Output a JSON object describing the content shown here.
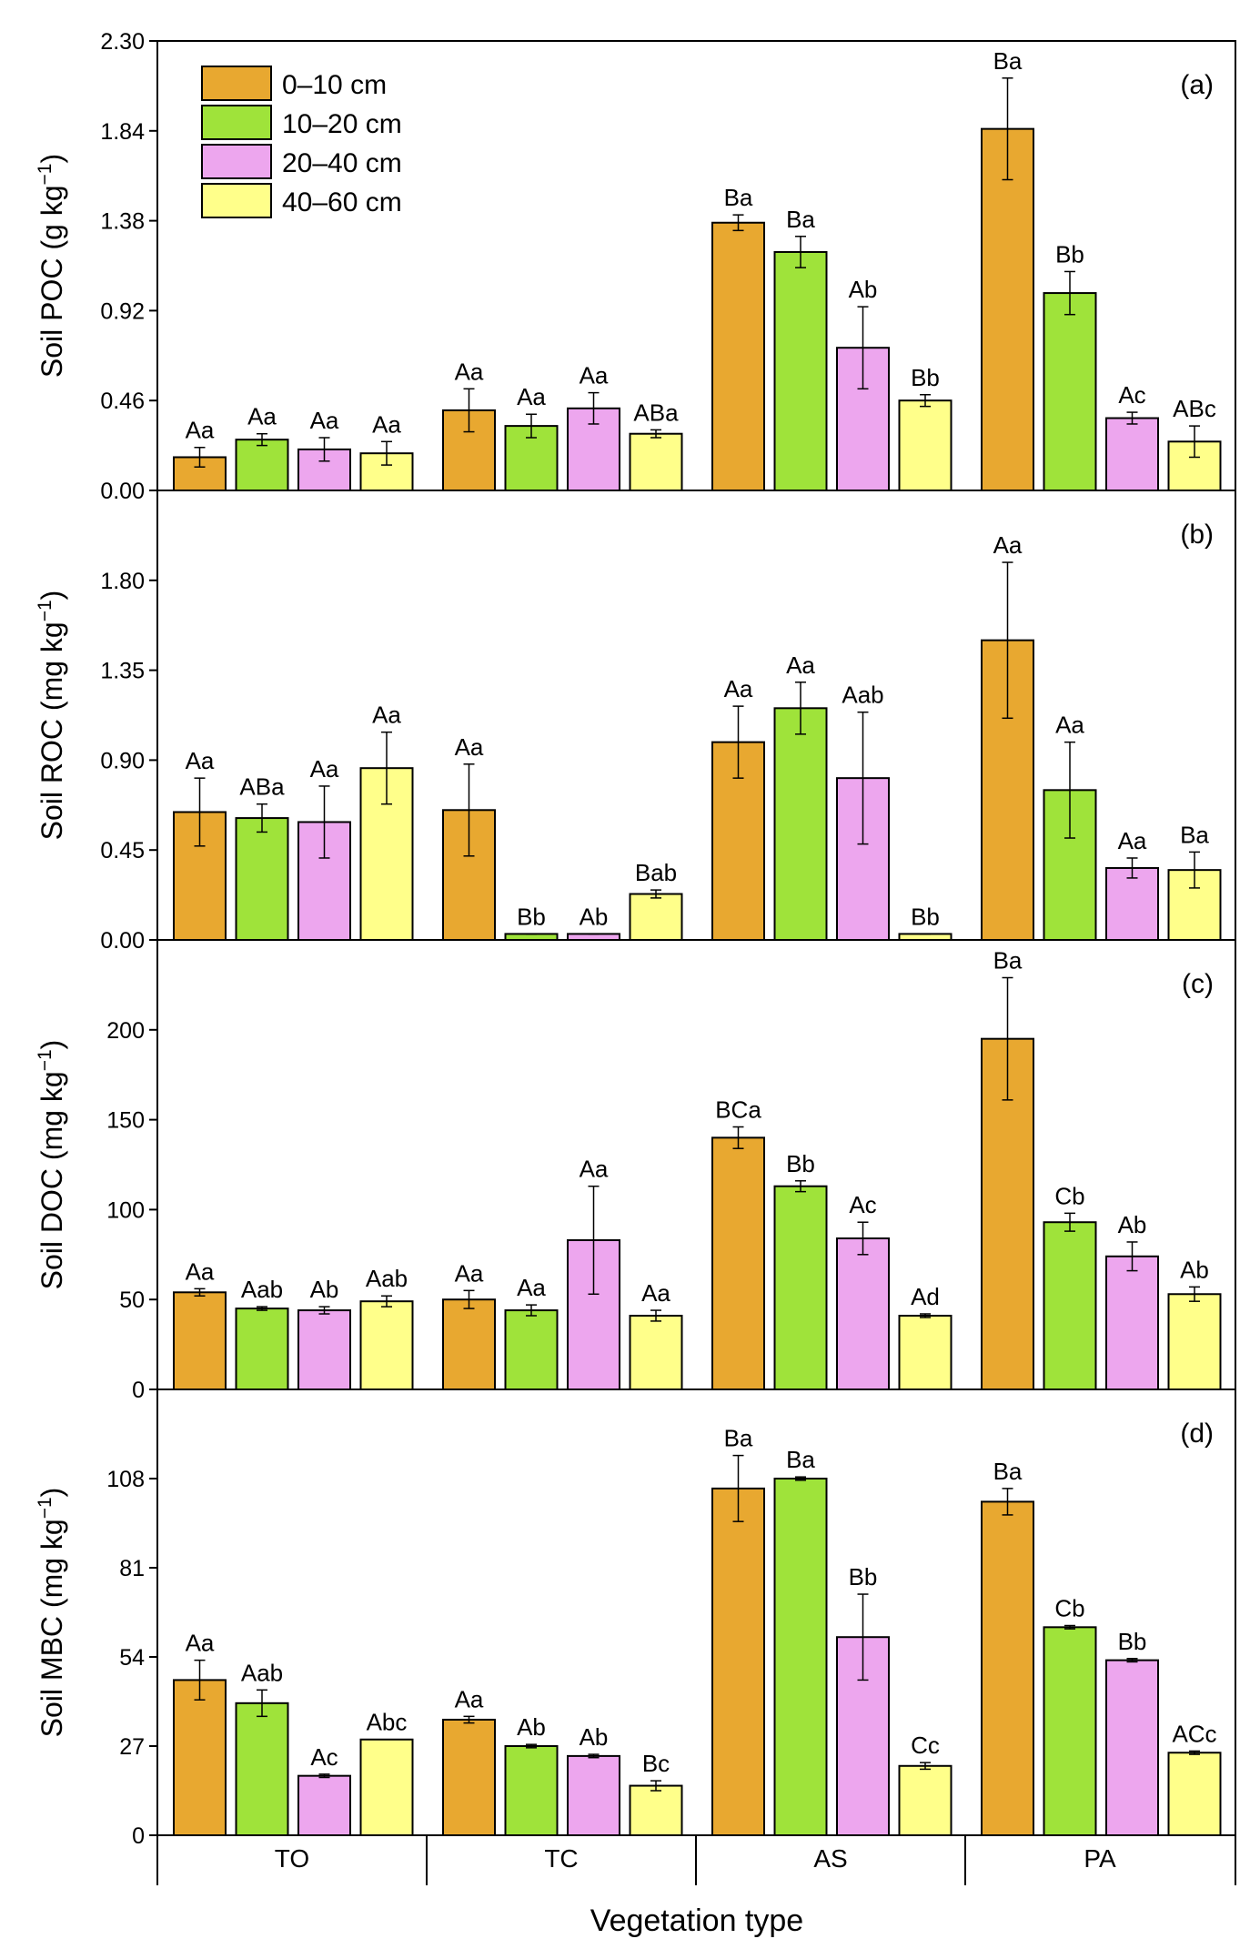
{
  "chart_data": [
    {
      "type": "bar",
      "panel_tag": "(a)",
      "ylabel": "Soil POC (g kg",
      "ylabel_sup": "−1",
      "ylabel_tail": ")",
      "ylim": [
        0,
        2.3
      ],
      "yticks": [
        "0.00",
        "0.46",
        "0.92",
        "1.38",
        "1.84",
        "2.30"
      ],
      "categories": [
        "TO",
        "TC",
        "AS",
        "PA"
      ],
      "series": [
        {
          "name": "0–10 cm",
          "values": [
            0.17,
            0.41,
            1.37,
            1.85
          ],
          "errors": [
            0.05,
            0.11,
            0.04,
            0.26
          ],
          "labels": [
            "Aa",
            "Aa",
            "Ba",
            "Ba"
          ]
        },
        {
          "name": "10–20 cm",
          "values": [
            0.26,
            0.33,
            1.22,
            1.01
          ],
          "errors": [
            0.03,
            0.06,
            0.08,
            0.11
          ],
          "labels": [
            "Aa",
            "Aa",
            "Ba",
            "Bb"
          ]
        },
        {
          "name": "20–40 cm",
          "values": [
            0.21,
            0.42,
            0.73,
            0.37
          ],
          "errors": [
            0.06,
            0.08,
            0.21,
            0.03
          ],
          "labels": [
            "Aa",
            "Aa",
            "Ab",
            "Ac"
          ]
        },
        {
          "name": "40–60 cm",
          "values": [
            0.19,
            0.29,
            0.46,
            0.25
          ],
          "errors": [
            0.06,
            0.02,
            0.03,
            0.08
          ],
          "labels": [
            "Aa",
            "ABa",
            "Bb",
            "ABc"
          ]
        }
      ]
    },
    {
      "type": "bar",
      "panel_tag": "(b)",
      "ylabel": "Soil ROC (mg kg",
      "ylabel_sup": "−1",
      "ylabel_tail": ")",
      "ylim": [
        0,
        2.25
      ],
      "yticks": [
        "0.00",
        "0.45",
        "0.90",
        "1.35",
        "1.80"
      ],
      "categories": [
        "TO",
        "TC",
        "AS",
        "PA"
      ],
      "series": [
        {
          "name": "0–10 cm",
          "values": [
            0.64,
            0.65,
            0.99,
            1.5
          ],
          "errors": [
            0.17,
            0.23,
            0.18,
            0.39
          ],
          "labels": [
            "Aa",
            "Aa",
            "Aa",
            "Aa"
          ]
        },
        {
          "name": "10–20 cm",
          "values": [
            0.61,
            0.03,
            1.16,
            0.75
          ],
          "errors": [
            0.07,
            0.0,
            0.13,
            0.24
          ],
          "labels": [
            "ABa",
            "Bb",
            "Aa",
            "Aa"
          ]
        },
        {
          "name": "20–40 cm",
          "values": [
            0.59,
            0.03,
            0.81,
            0.36
          ],
          "errors": [
            0.18,
            0.0,
            0.33,
            0.05
          ],
          "labels": [
            "Aa",
            "Ab",
            "Aab",
            "Aa"
          ]
        },
        {
          "name": "40–60 cm",
          "values": [
            0.86,
            0.23,
            0.03,
            0.35
          ],
          "errors": [
            0.18,
            0.02,
            0.0,
            0.09
          ],
          "labels": [
            "Aa",
            "Bab",
            "Bb",
            "Ba"
          ]
        }
      ]
    },
    {
      "type": "bar",
      "panel_tag": "(c)",
      "ylabel": "Soil DOC (mg kg",
      "ylabel_sup": "−1",
      "ylabel_tail": ")",
      "ylim": [
        0,
        250
      ],
      "yticks": [
        "0",
        "50",
        "100",
        "150",
        "200"
      ],
      "categories": [
        "TO",
        "TC",
        "AS",
        "PA"
      ],
      "series": [
        {
          "name": "0–10 cm",
          "values": [
            54,
            50,
            140,
            195
          ],
          "errors": [
            2,
            5,
            6,
            34
          ],
          "labels": [
            "Aa",
            "Aa",
            "BCa",
            "Ba"
          ]
        },
        {
          "name": "10–20 cm",
          "values": [
            45,
            44,
            113,
            93
          ],
          "errors": [
            1,
            3,
            3,
            5
          ],
          "labels": [
            "Aab",
            "Aa",
            "Bb",
            "Cb"
          ]
        },
        {
          "name": "20–40 cm",
          "values": [
            44,
            83,
            84,
            74
          ],
          "errors": [
            2,
            30,
            9,
            8
          ],
          "labels": [
            "Ab",
            "Aa",
            "Ac",
            "Ab"
          ]
        },
        {
          "name": "40–60 cm",
          "values": [
            49,
            41,
            41,
            53
          ],
          "errors": [
            3,
            3,
            1,
            4
          ],
          "labels": [
            "Aab",
            "Aa",
            "Ad",
            "Ab"
          ]
        }
      ]
    },
    {
      "type": "bar",
      "panel_tag": "(d)",
      "ylabel": "Soil MBC (mg kg",
      "ylabel_sup": "−1",
      "ylabel_tail": ")",
      "ylim": [
        0,
        135
      ],
      "yticks": [
        "0",
        "27",
        "54",
        "81",
        "108"
      ],
      "categories": [
        "TO",
        "TC",
        "AS",
        "PA"
      ],
      "series": [
        {
          "name": "0–10 cm",
          "values": [
            47,
            35,
            105,
            101
          ],
          "errors": [
            6,
            1,
            10,
            4
          ],
          "labels": [
            "Aa",
            "Aa",
            "Ba",
            "Ba"
          ]
        },
        {
          "name": "10–20 cm",
          "values": [
            40,
            27,
            108,
            63
          ],
          "errors": [
            4,
            0.5,
            0.5,
            0.5
          ],
          "labels": [
            "Aab",
            "Ab",
            "Ba",
            "Cb"
          ]
        },
        {
          "name": "20–40 cm",
          "values": [
            18,
            24,
            60,
            53
          ],
          "errors": [
            0.5,
            0.5,
            13,
            0.5
          ],
          "labels": [
            "Ac",
            "Ab",
            "Bb",
            "Bb"
          ]
        },
        {
          "name": "40–60 cm",
          "values": [
            29,
            15,
            21,
            25
          ],
          "errors": [
            0,
            1.5,
            1,
            0.5
          ],
          "labels": [
            "Abc",
            "Bc",
            "Cc",
            "ACc"
          ]
        }
      ]
    }
  ],
  "legend": {
    "entries": [
      "0–10 cm",
      "10–20 cm",
      "20–40 cm",
      "40–60 cm"
    ]
  },
  "colors": {
    "depth_0_10": "#E8A830",
    "depth_10_20": "#9FE33A",
    "depth_20_40": "#EDA6EE",
    "depth_40_60": "#FFFF8A",
    "axis": "#000000"
  },
  "x_axis": {
    "title": "Vegetation type",
    "categories": [
      "TO",
      "TC",
      "AS",
      "PA"
    ]
  }
}
